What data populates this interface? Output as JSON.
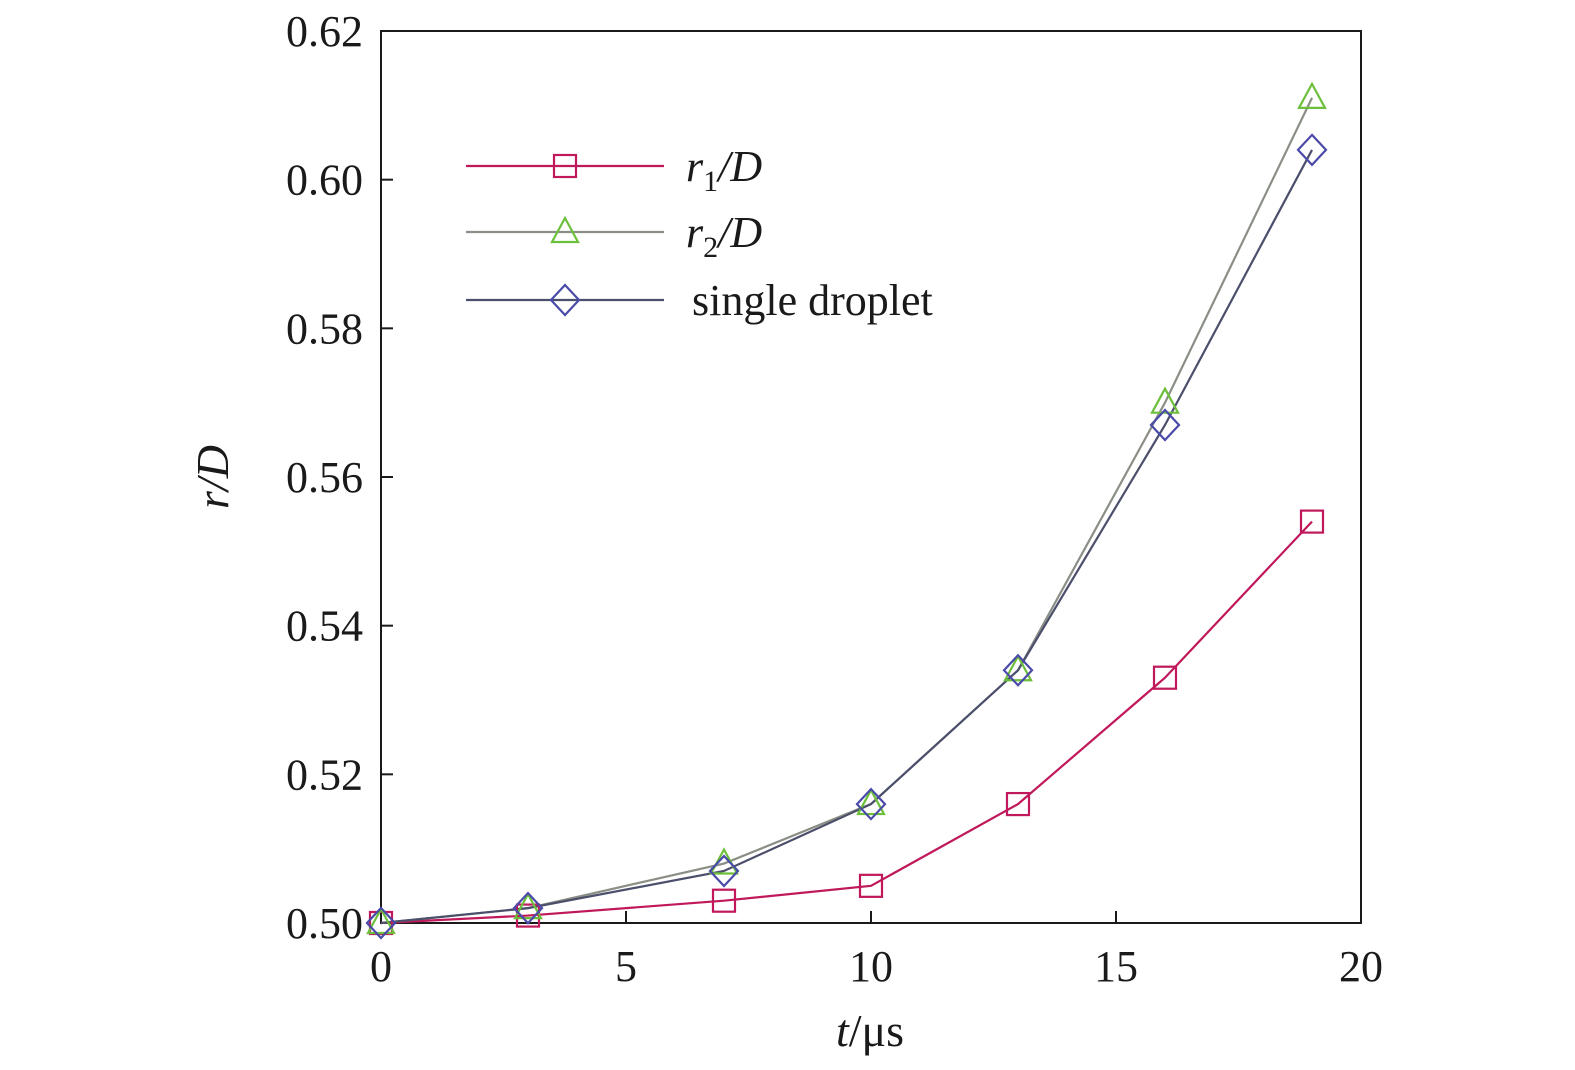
{
  "chart_data": {
    "type": "line",
    "xlabel": {
      "var": "t",
      "unit": "/μs"
    },
    "ylabel": {
      "var": "r",
      "rest": "/D"
    },
    "xlim": [
      0,
      20
    ],
    "ylim": [
      0.5,
      0.62
    ],
    "xticks": [
      "0",
      "5",
      "10",
      "15",
      "20"
    ],
    "xtick_values": [
      0,
      5,
      10,
      15,
      20
    ],
    "yticks": [
      "0.50",
      "0.52",
      "0.54",
      "0.56",
      "0.58",
      "0.60",
      "0.62"
    ],
    "ytick_values": [
      0.5,
      0.52,
      0.54,
      0.56,
      0.58,
      0.6,
      0.62
    ],
    "grid": false,
    "legend_position": "top-left",
    "x": [
      0,
      3,
      7,
      10,
      13,
      16,
      19
    ],
    "series": [
      {
        "name": "r1/D",
        "legend": {
          "var": "r",
          "sub": "1",
          "rest": "/D"
        },
        "marker": "square",
        "line_color": "#c0185a",
        "marker_color": "#c0185a",
        "values": [
          0.5,
          0.501,
          0.503,
          0.505,
          0.516,
          0.533,
          0.554
        ]
      },
      {
        "name": "r2/D",
        "legend": {
          "var": "r",
          "sub": "2",
          "rest": "/D"
        },
        "marker": "triangle",
        "line_color": "#8a8f86",
        "marker_color": "#6cbf3a",
        "values": [
          0.5,
          0.502,
          0.508,
          0.516,
          0.534,
          0.57,
          0.611
        ]
      },
      {
        "name": "single droplet",
        "legend": {
          "text": "single droplet"
        },
        "marker": "diamond",
        "line_color": "#4b4f6b",
        "marker_color": "#4a4aa8",
        "values": [
          0.5,
          0.502,
          0.507,
          0.516,
          0.534,
          0.567,
          0.604
        ]
      }
    ]
  }
}
